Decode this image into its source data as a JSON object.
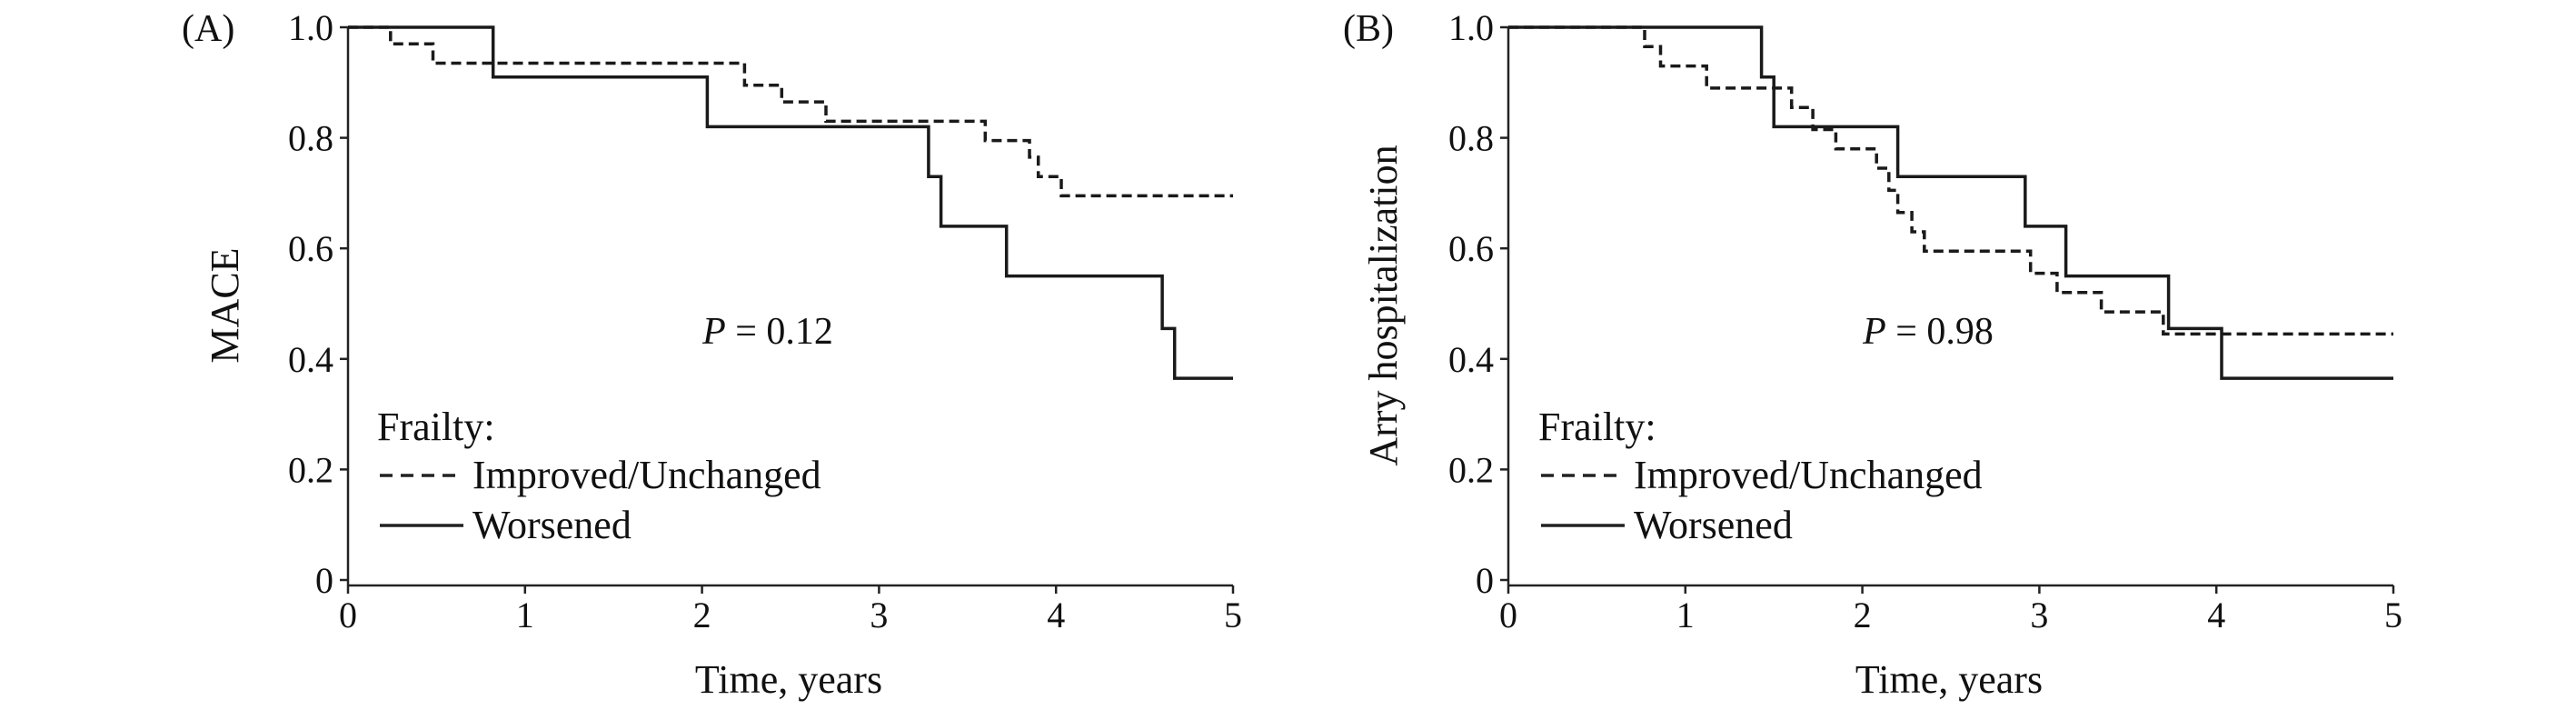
{
  "chart_data": [
    {
      "type": "line",
      "panel_label": "(A)",
      "ylabel": "MACE",
      "xlabel": "Time, years",
      "xlim": [
        0,
        5
      ],
      "ylim": [
        0,
        1
      ],
      "x_ticks": [
        "0",
        "1",
        "2",
        "3",
        "4",
        "5"
      ],
      "y_ticks": [
        "0",
        "0.2",
        "0.4",
        "0.6",
        "0.8",
        "1.0"
      ],
      "p_value_label": "P",
      "p_value_text": " = 0.12",
      "legend_title": "Frailty:",
      "legend_position": "bottom-left",
      "grid": false,
      "series": [
        {
          "name": "Improved/Unchanged",
          "line_style": "dashed",
          "step": true,
          "points": [
            [
              0,
              1.0
            ],
            [
              0.24,
              1.0
            ],
            [
              0.24,
              0.97
            ],
            [
              0.48,
              0.97
            ],
            [
              0.48,
              0.935
            ],
            [
              2.24,
              0.935
            ],
            [
              2.24,
              0.895
            ],
            [
              2.45,
              0.895
            ],
            [
              2.45,
              0.865
            ],
            [
              2.7,
              0.865
            ],
            [
              2.7,
              0.83
            ],
            [
              3.6,
              0.83
            ],
            [
              3.6,
              0.795
            ],
            [
              3.85,
              0.795
            ],
            [
              3.85,
              0.765
            ],
            [
              3.9,
              0.765
            ],
            [
              3.9,
              0.73
            ],
            [
              4.03,
              0.73
            ],
            [
              4.03,
              0.695
            ],
            [
              5.0,
              0.695
            ]
          ]
        },
        {
          "name": "Worsened",
          "line_style": "solid",
          "step": true,
          "points": [
            [
              0,
              1.0
            ],
            [
              0.82,
              1.0
            ],
            [
              0.82,
              0.91
            ],
            [
              2.03,
              0.91
            ],
            [
              2.03,
              0.82
            ],
            [
              3.28,
              0.82
            ],
            [
              3.28,
              0.73
            ],
            [
              3.35,
              0.73
            ],
            [
              3.35,
              0.64
            ],
            [
              3.72,
              0.64
            ],
            [
              3.72,
              0.55
            ],
            [
              4.6,
              0.55
            ],
            [
              4.6,
              0.455
            ],
            [
              4.67,
              0.455
            ],
            [
              4.67,
              0.365
            ],
            [
              5.0,
              0.365
            ]
          ]
        }
      ]
    },
    {
      "type": "line",
      "panel_label": "(B)",
      "ylabel": "Arry hospitalization",
      "xlabel": "Time, years",
      "xlim": [
        0,
        5
      ],
      "ylim": [
        0,
        1
      ],
      "x_ticks": [
        "0",
        "1",
        "2",
        "3",
        "4",
        "5"
      ],
      "y_ticks": [
        "0",
        "0.2",
        "0.4",
        "0.6",
        "0.8",
        "1.0"
      ],
      "p_value_label": "P",
      "p_value_text": " = 0.98",
      "legend_title": "Frailty:",
      "legend_position": "bottom-left",
      "grid": false,
      "series": [
        {
          "name": "Improved/Unchanged",
          "line_style": "dashed",
          "step": true,
          "points": [
            [
              0,
              1.0
            ],
            [
              0.77,
              1.0
            ],
            [
              0.77,
              0.965
            ],
            [
              0.86,
              0.965
            ],
            [
              0.86,
              0.93
            ],
            [
              1.12,
              0.93
            ],
            [
              1.12,
              0.89
            ],
            [
              1.6,
              0.89
            ],
            [
              1.6,
              0.855
            ],
            [
              1.72,
              0.855
            ],
            [
              1.72,
              0.815
            ],
            [
              1.85,
              0.815
            ],
            [
              1.85,
              0.78
            ],
            [
              2.08,
              0.78
            ],
            [
              2.08,
              0.745
            ],
            [
              2.15,
              0.745
            ],
            [
              2.15,
              0.705
            ],
            [
              2.2,
              0.705
            ],
            [
              2.2,
              0.665
            ],
            [
              2.28,
              0.665
            ],
            [
              2.28,
              0.63
            ],
            [
              2.35,
              0.63
            ],
            [
              2.35,
              0.595
            ],
            [
              2.95,
              0.595
            ],
            [
              2.95,
              0.555
            ],
            [
              3.1,
              0.555
            ],
            [
              3.1,
              0.52
            ],
            [
              3.35,
              0.52
            ],
            [
              3.35,
              0.485
            ],
            [
              3.7,
              0.485
            ],
            [
              3.7,
              0.445
            ],
            [
              5.0,
              0.445
            ]
          ]
        },
        {
          "name": "Worsened",
          "line_style": "solid",
          "step": true,
          "points": [
            [
              0,
              1.0
            ],
            [
              1.43,
              1.0
            ],
            [
              1.43,
              0.91
            ],
            [
              1.5,
              0.91
            ],
            [
              1.5,
              0.82
            ],
            [
              2.2,
              0.82
            ],
            [
              2.2,
              0.73
            ],
            [
              2.92,
              0.73
            ],
            [
              2.92,
              0.64
            ],
            [
              3.15,
              0.64
            ],
            [
              3.15,
              0.55
            ],
            [
              3.73,
              0.55
            ],
            [
              3.73,
              0.455
            ],
            [
              4.03,
              0.455
            ],
            [
              4.03,
              0.365
            ],
            [
              5.0,
              0.365
            ]
          ]
        }
      ]
    }
  ]
}
